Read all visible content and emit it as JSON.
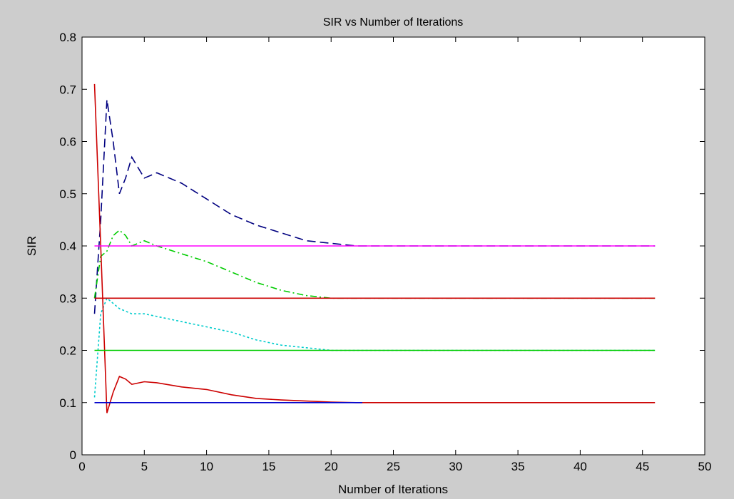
{
  "chart_data": {
    "type": "line",
    "title": "SIR vs Number of Iterations",
    "xlabel": "Number of Iterations",
    "ylabel": "SIR",
    "xlim": [
      0,
      50
    ],
    "ylim": [
      0,
      0.8
    ],
    "xticks": [
      0,
      5,
      10,
      15,
      20,
      25,
      30,
      35,
      40,
      45,
      50
    ],
    "yticks": [
      0,
      0.1,
      0.2,
      0.3,
      0.4,
      0.5,
      0.6,
      0.7,
      0.8
    ],
    "grid": false,
    "series": [
      {
        "color": "#000080",
        "style": "dashed",
        "x": [
          1,
          1.5,
          2,
          2.5,
          3,
          3.5,
          4,
          5,
          6,
          8,
          10,
          12,
          14,
          16,
          18,
          20,
          22,
          24,
          26,
          46
        ],
        "y": [
          0.27,
          0.45,
          0.68,
          0.6,
          0.5,
          0.53,
          0.57,
          0.53,
          0.54,
          0.52,
          0.49,
          0.46,
          0.44,
          0.425,
          0.41,
          0.405,
          0.4,
          0.4,
          0.4,
          0.4
        ]
      },
      {
        "color": "#00cc00",
        "style": "dashdot",
        "x": [
          1,
          1.5,
          2,
          2.5,
          3,
          3.5,
          4,
          5,
          6,
          8,
          10,
          12,
          14,
          16,
          18,
          20,
          22,
          46
        ],
        "y": [
          0.3,
          0.38,
          0.39,
          0.42,
          0.43,
          0.42,
          0.4,
          0.41,
          0.4,
          0.385,
          0.37,
          0.35,
          0.33,
          0.315,
          0.305,
          0.3,
          0.3,
          0.3
        ]
      },
      {
        "color": "#00cccc",
        "style": "dotted",
        "x": [
          1,
          1.5,
          2,
          2.5,
          3,
          4,
          5,
          6,
          8,
          10,
          12,
          14,
          16,
          18,
          20,
          22,
          46
        ],
        "y": [
          0.11,
          0.27,
          0.3,
          0.29,
          0.28,
          0.27,
          0.27,
          0.265,
          0.255,
          0.245,
          0.235,
          0.22,
          0.21,
          0.205,
          0.2,
          0.2,
          0.2
        ]
      },
      {
        "color": "#cc0000",
        "style": "solid",
        "x": [
          1,
          1.5,
          2,
          2.5,
          3,
          3.5,
          4,
          5,
          6,
          8,
          10,
          12,
          14,
          16,
          18,
          20,
          22,
          46
        ],
        "y": [
          0.71,
          0.4,
          0.08,
          0.12,
          0.15,
          0.145,
          0.135,
          0.14,
          0.138,
          0.13,
          0.125,
          0.115,
          0.108,
          0.105,
          0.103,
          0.101,
          0.1,
          0.1
        ]
      },
      {
        "color": "#ff00ff",
        "style": "solid",
        "x": [
          1,
          46
        ],
        "y": [
          0.4,
          0.4
        ]
      },
      {
        "color": "#cc0000",
        "style": "solid",
        "x": [
          1,
          46
        ],
        "y": [
          0.3,
          0.3
        ]
      },
      {
        "color": "#00cc00",
        "style": "solid",
        "x": [
          1,
          46
        ],
        "y": [
          0.2,
          0.2
        ]
      },
      {
        "color": "#0000cc",
        "style": "solid",
        "x": [
          1,
          22.5
        ],
        "y": [
          0.1,
          0.1
        ]
      }
    ]
  }
}
